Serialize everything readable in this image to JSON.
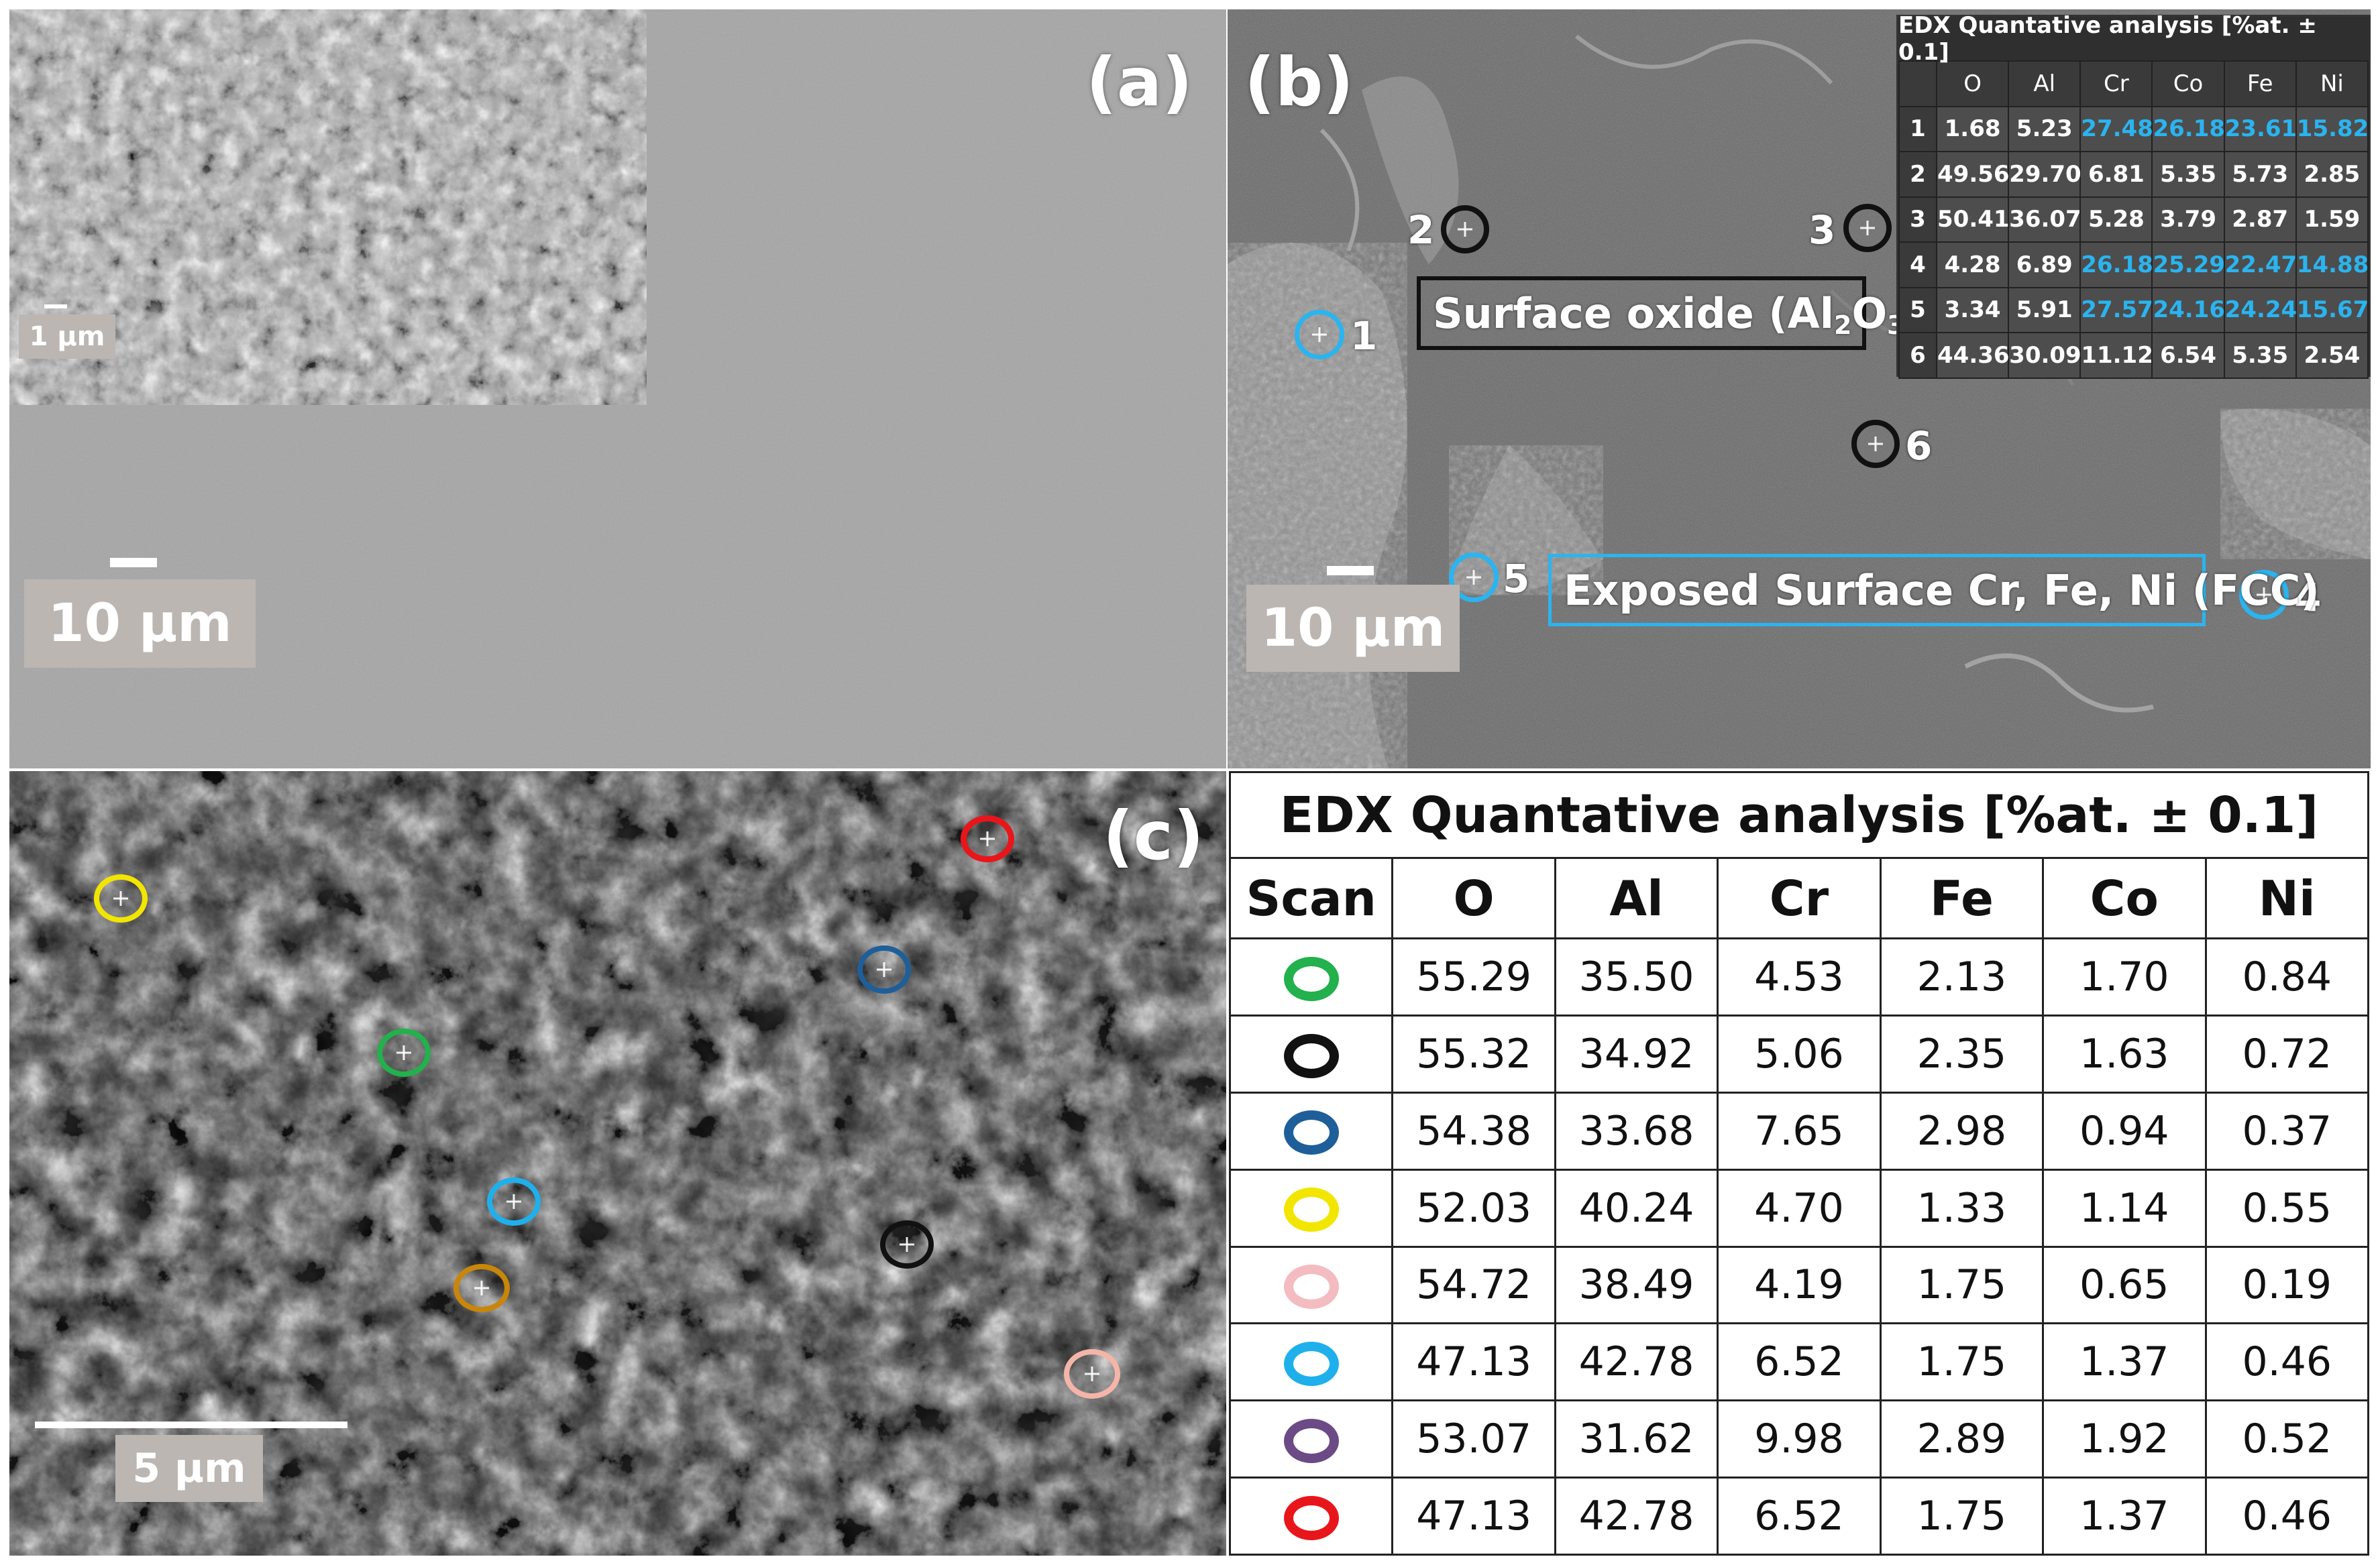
{
  "panel_a": {
    "letter": "(a)",
    "scale_main": "10 µm",
    "scale_inset": "1 µm"
  },
  "panel_b": {
    "letter": "(b)",
    "scale": "10 µm",
    "annotation_oxide": "Surface oxide (Al",
    "annotation_oxide_sub1": "2",
    "annotation_oxide_mid": "O",
    "annotation_oxide_sub2": "3",
    "annotation_oxide_end": ")",
    "annotation_fcc": "Exposed Surface Cr, Fe, Ni (FCC)",
    "markers": [
      {
        "label": "1",
        "color": "#2ab4f0"
      },
      {
        "label": "2",
        "color": "#111111"
      },
      {
        "label": "3",
        "color": "#111111"
      },
      {
        "label": "4",
        "color": "#2ab4f0"
      },
      {
        "label": "5",
        "color": "#2ab4f0"
      },
      {
        "label": "6",
        "color": "#111111"
      }
    ],
    "table": {
      "title": "EDX Quantative analysis [%at. ± 0.1]",
      "headers": [
        "",
        "O",
        "Al",
        "Cr",
        "Co",
        "Fe",
        "Ni"
      ],
      "rows": [
        [
          "1",
          "1.68",
          "5.23",
          "27.48",
          "26.18",
          "23.61",
          "15.82"
        ],
        [
          "2",
          "49.56",
          "29.70",
          "6.81",
          "5.35",
          "5.73",
          "2.85"
        ],
        [
          "3",
          "50.41",
          "36.07",
          "5.28",
          "3.79",
          "2.87",
          "1.59"
        ],
        [
          "4",
          "4.28",
          "6.89",
          "26.18",
          "25.29",
          "22.47",
          "14.88"
        ],
        [
          "5",
          "3.34",
          "5.91",
          "27.57",
          "24.16",
          "24.24",
          "15.67"
        ],
        [
          "6",
          "44.36",
          "30.09",
          "11.12",
          "6.54",
          "5.35",
          "2.54"
        ]
      ],
      "highlight_color": "#2ab4f0"
    }
  },
  "panel_c": {
    "letter": "(c)",
    "scale": "5 µm",
    "markers": [
      {
        "name": "yellow",
        "color": "#f2e600"
      },
      {
        "name": "red",
        "color": "#e8161b"
      },
      {
        "name": "dark-blue",
        "color": "#1e5f9a"
      },
      {
        "name": "green",
        "color": "#22b14c"
      },
      {
        "name": "light-blue",
        "color": "#1fb0ec"
      },
      {
        "name": "orange",
        "color": "#c8860a"
      },
      {
        "name": "black",
        "color": "#111111"
      },
      {
        "name": "pink",
        "color": "#f4b5a8"
      }
    ]
  },
  "table_d": {
    "title": "EDX Quantative analysis [%at. ± 0.1]",
    "headers": [
      "Scan",
      "O",
      "Al",
      "Cr",
      "Fe",
      "Co",
      "Ni"
    ],
    "rows": [
      {
        "color": "#22b14c",
        "values": [
          "55.29",
          "35.50",
          "4.53",
          "2.13",
          "1.70",
          "0.84"
        ]
      },
      {
        "color": "#111111",
        "values": [
          "55.32",
          "34.92",
          "5.06",
          "2.35",
          "1.63",
          "0.72"
        ]
      },
      {
        "color": "#1e5f9a",
        "values": [
          "54.38",
          "33.68",
          "7.65",
          "2.98",
          "0.94",
          "0.37"
        ]
      },
      {
        "color": "#f2e600",
        "values": [
          "52.03",
          "40.24",
          "4.70",
          "1.33",
          "1.14",
          "0.55"
        ]
      },
      {
        "color": "#f4bcc0",
        "values": [
          "54.72",
          "38.49",
          "4.19",
          "1.75",
          "0.65",
          "0.19"
        ]
      },
      {
        "color": "#1fb0ec",
        "values": [
          "47.13",
          "42.78",
          "6.52",
          "1.75",
          "1.37",
          "0.46"
        ]
      },
      {
        "color": "#6b4a86",
        "values": [
          "53.07",
          "31.62",
          "9.98",
          "2.89",
          "1.92",
          "0.52"
        ]
      },
      {
        "color": "#e8161b",
        "values": [
          "47.13",
          "42.78",
          "6.52",
          "1.75",
          "1.37",
          "0.46"
        ]
      }
    ]
  }
}
